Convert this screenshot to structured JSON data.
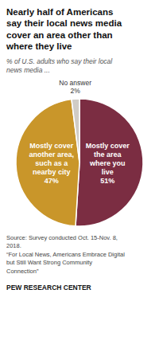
{
  "chart_data": {
    "type": "pie",
    "title": "Nearly half of Americans\nsay their local news media\ncover an area other than\nwhere they live",
    "subtitle": "% of U.S. adults who say their local\nnews media ...",
    "categories": [
      "Mostly cover\nthe area\nwhere you\nlive",
      "Mostly cover\nanother area,\nsuch as a\nnearby city",
      "No answer"
    ],
    "values": [
      51,
      47,
      2
    ],
    "value_labels": [
      "51%",
      "47%",
      "2%"
    ],
    "data_labels": true,
    "colors": [
      "#7b2d42",
      "#c9962a",
      "#d0ccc6"
    ],
    "annotations": [
      "Source: Survey conducted Oct. 15-Nov. 8,\n2018.\n“For Local News, Americans Embrace Digital\nbut Still Want Strong Community\nConnection”",
      "PEW RESEARCH CENTER"
    ]
  }
}
